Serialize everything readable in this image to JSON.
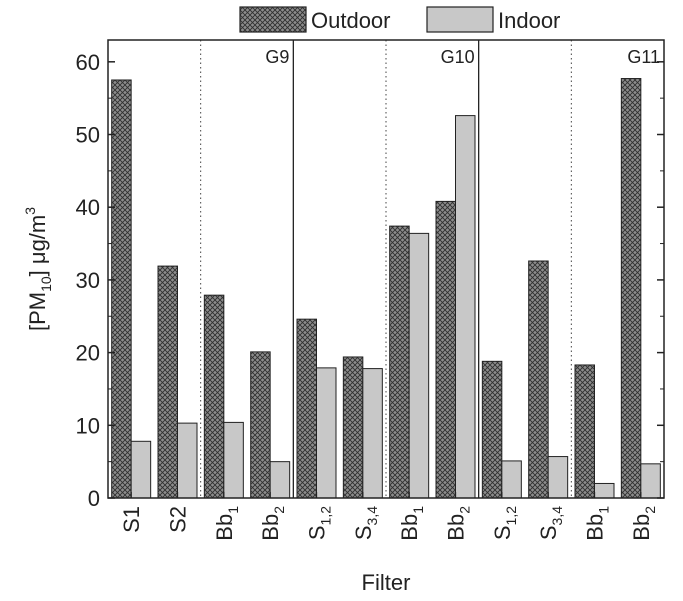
{
  "chart_data": {
    "type": "bar",
    "xlabel": "Filter",
    "ylabel": {
      "base": "[PM",
      "sub": "10",
      "rest": "] μg/m",
      "sup": "3"
    },
    "ylim": [
      0,
      63
    ],
    "yticks": [
      0,
      10,
      20,
      30,
      40,
      50,
      60
    ],
    "grid": false,
    "legend_position": "top",
    "categories": [
      {
        "base": "S1",
        "sub": ""
      },
      {
        "base": "S2",
        "sub": ""
      },
      {
        "base": "Bb",
        "sub": "1"
      },
      {
        "base": "Bb",
        "sub": "2"
      },
      {
        "base": "S",
        "sub": "1,2"
      },
      {
        "base": "S",
        "sub": "3,4"
      },
      {
        "base": "Bb",
        "sub": "1"
      },
      {
        "base": "Bb",
        "sub": "2"
      },
      {
        "base": "S",
        "sub": "1,2"
      },
      {
        "base": "S",
        "sub": "3,4"
      },
      {
        "base": "Bb",
        "sub": "1"
      },
      {
        "base": "Bb",
        "sub": "2"
      }
    ],
    "series": [
      {
        "name": "Outdoor",
        "pattern": "crosshatch",
        "color": "#7a7a7a",
        "values": [
          57.5,
          31.9,
          27.9,
          20.1,
          24.6,
          19.4,
          37.4,
          40.8,
          18.8,
          32.6,
          18.3,
          57.7
        ]
      },
      {
        "name": "Indoor",
        "pattern": "solid",
        "color": "#c8c8c8",
        "values": [
          7.8,
          10.3,
          10.4,
          5.0,
          17.9,
          17.8,
          36.4,
          52.6,
          5.1,
          5.7,
          2.0,
          4.7
        ]
      }
    ],
    "groups": [
      {
        "label": "G9",
        "start_index": 0,
        "end_index": 3,
        "label_position": "top-right"
      },
      {
        "label": "G10",
        "start_index": 4,
        "end_index": 7,
        "label_position": "top-right"
      },
      {
        "label": "G11",
        "start_index": 8,
        "end_index": 11,
        "label_position": "top-right"
      }
    ],
    "dotted_separators_after_index": [
      1,
      5,
      9
    ],
    "solid_separators_after_index": [
      3,
      7
    ]
  }
}
